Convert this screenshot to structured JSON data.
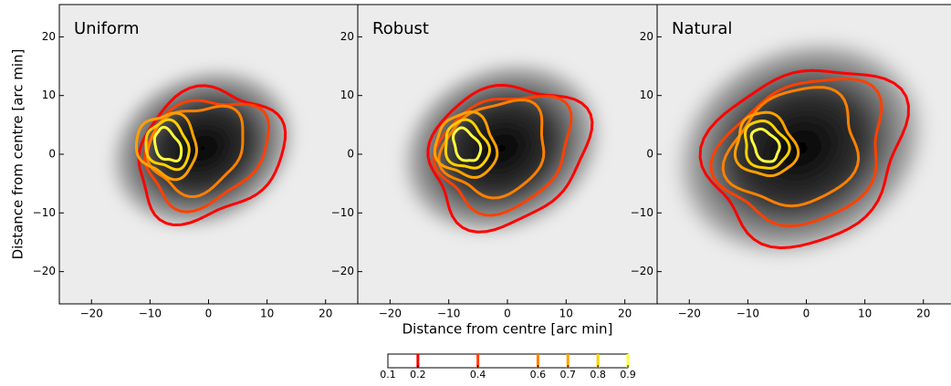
{
  "chart_data": [
    {
      "type": "contour",
      "title": "Uniform",
      "ylabel": "Distance from centre [arc min]",
      "xlim": [
        -25.5,
        25.5
      ],
      "ylim": [
        -25.5,
        25.5
      ],
      "xticks": [
        {
          "value": -20,
          "label": "−20"
        },
        {
          "value": -10,
          "label": "−10"
        },
        0,
        10,
        20
      ],
      "yticks": [
        {
          "value": -20,
          "label": "−20"
        },
        {
          "value": -10,
          "label": "−10"
        },
        0,
        10,
        20
      ]
    },
    {
      "type": "contour",
      "title": "Robust",
      "xlabel": "Distance from centre [arc min]",
      "xlim": [
        -25.5,
        25.5
      ],
      "ylim": [
        -25.5,
        25.5
      ],
      "xticks": [
        {
          "value": -20,
          "label": "−20"
        },
        {
          "value": -10,
          "label": "−10"
        },
        0,
        10,
        20
      ],
      "yticks": [
        {
          "value": -20,
          "label": "−20"
        },
        {
          "value": -10,
          "label": "−10"
        },
        0,
        10,
        20
      ]
    },
    {
      "type": "contour",
      "title": "Natural",
      "xlim": [
        -25.5,
        25.5
      ],
      "ylim": [
        -25.5,
        25.5
      ],
      "xticks": [
        {
          "value": -20,
          "label": "−20"
        },
        {
          "value": -10,
          "label": "−10"
        },
        0,
        10,
        20
      ],
      "yticks": [
        {
          "value": -20,
          "label": "−20"
        },
        {
          "value": -10,
          "label": "−10"
        },
        0,
        10,
        20
      ]
    },
    {
      "type": "colorbar",
      "xlim": [
        0.1,
        0.9
      ],
      "xticks": [
        0.1,
        0.2,
        0.4,
        0.6,
        0.7,
        0.8,
        0.9
      ],
      "levels": [
        0.2,
        0.4,
        0.6,
        0.7,
        0.8,
        0.9
      ],
      "colors": [
        "#ff0000",
        "#ff4000",
        "#ff8000",
        "#ffa000",
        "#ffd000",
        "#ffff40"
      ]
    }
  ]
}
